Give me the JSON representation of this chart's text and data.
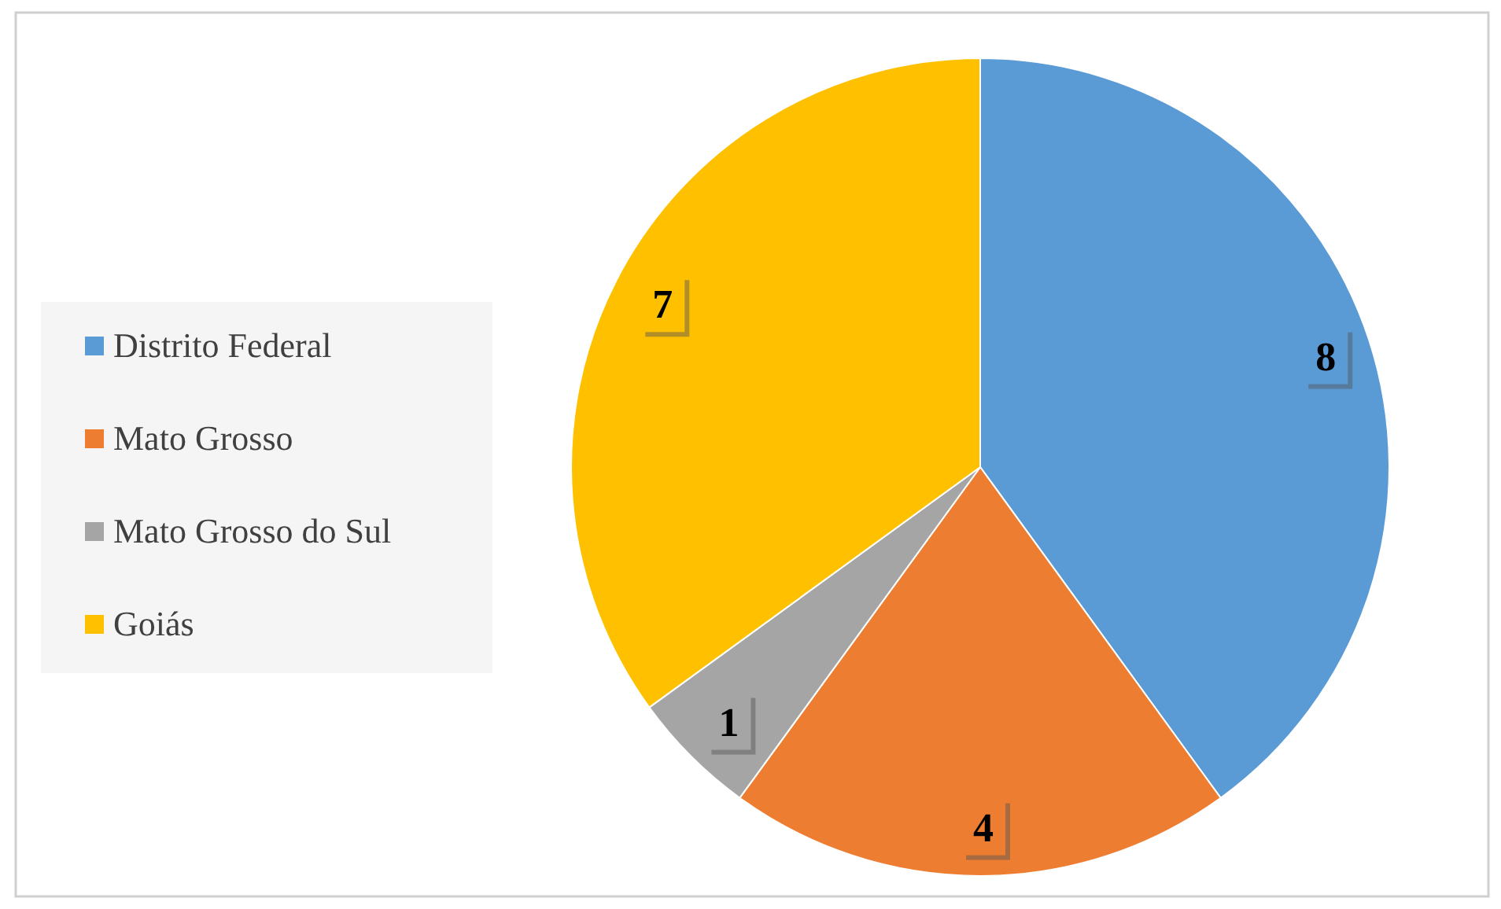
{
  "chart_data": {
    "type": "pie",
    "categories": [
      "Distrito Federal",
      "Mato Grosso",
      "Mato Grosso do Sul",
      "Goiás"
    ],
    "values": [
      8,
      4,
      1,
      7
    ],
    "colors": [
      "#5b9bd5",
      "#ed7d31",
      "#a5a5a5",
      "#ffc000"
    ],
    "data_labels": true,
    "legend": "left"
  }
}
